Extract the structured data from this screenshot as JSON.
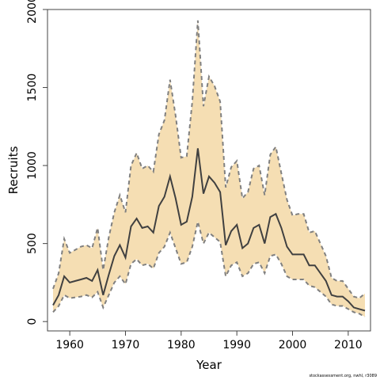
{
  "chart_data": {
    "type": "area",
    "xlabel": "Year",
    "ylabel": "Recruits",
    "xlim": [
      1956,
      2014
    ],
    "ylim": [
      -60,
      2000
    ],
    "x_ticks": [
      1960,
      1970,
      1980,
      1990,
      2000,
      2010
    ],
    "y_ticks": [
      0,
      500,
      1000,
      1500,
      2000
    ],
    "grid": false,
    "legend": "none",
    "colors": {
      "band": "#f5deb3",
      "bound_line": "#808080",
      "estimate_line": "#404040"
    },
    "x": [
      1957,
      1958,
      1959,
      1960,
      1961,
      1962,
      1963,
      1964,
      1965,
      1966,
      1967,
      1968,
      1969,
      1970,
      1971,
      1972,
      1973,
      1974,
      1975,
      1976,
      1977,
      1978,
      1979,
      1980,
      1981,
      1982,
      1983,
      1984,
      1985,
      1986,
      1987,
      1988,
      1989,
      1990,
      1991,
      1992,
      1993,
      1994,
      1995,
      1996,
      1997,
      1998,
      1999,
      2000,
      2001,
      2002,
      2003,
      2004,
      2005,
      2006,
      2007,
      2008,
      2009,
      2010,
      2011,
      2012,
      2013
    ],
    "series": [
      {
        "name": "",
        "role": "estimate",
        "values": [
          105,
          170,
          290,
          250,
          260,
          270,
          280,
          260,
          330,
          170,
          300,
          420,
          490,
          410,
          610,
          660,
          600,
          610,
          570,
          740,
          800,
          930,
          790,
          620,
          640,
          800,
          1110,
          820,
          930,
          890,
          830,
          490,
          580,
          620,
          470,
          500,
          600,
          620,
          500,
          670,
          690,
          600,
          480,
          430,
          430,
          430,
          360,
          360,
          310,
          260,
          170,
          160,
          160,
          130,
          90,
          80,
          70
        ]
      },
      {
        "name": "",
        "role": "upper",
        "values": [
          210,
          310,
          530,
          440,
          460,
          480,
          490,
          470,
          600,
          330,
          540,
          700,
          810,
          700,
          1000,
          1080,
          980,
          1000,
          960,
          1200,
          1290,
          1550,
          1320,
          1050,
          1060,
          1410,
          1930,
          1380,
          1570,
          1510,
          1410,
          860,
          990,
          1030,
          790,
          830,
          980,
          1000,
          810,
          1070,
          1120,
          950,
          780,
          680,
          690,
          690,
          570,
          580,
          500,
          420,
          280,
          260,
          260,
          210,
          160,
          150,
          180
        ]
      },
      {
        "name": "",
        "role": "lower",
        "values": [
          60,
          100,
          170,
          150,
          155,
          160,
          170,
          155,
          190,
          90,
          170,
          250,
          290,
          240,
          370,
          400,
          360,
          370,
          340,
          440,
          480,
          570,
          470,
          370,
          380,
          480,
          640,
          500,
          570,
          540,
          510,
          290,
          360,
          380,
          290,
          310,
          370,
          380,
          310,
          420,
          430,
          370,
          290,
          270,
          270,
          270,
          230,
          220,
          190,
          160,
          110,
          100,
          100,
          80,
          60,
          50,
          30
        ]
      }
    ]
  },
  "footer": {
    "text": "stockassessment.org, nwhl, r3089"
  }
}
